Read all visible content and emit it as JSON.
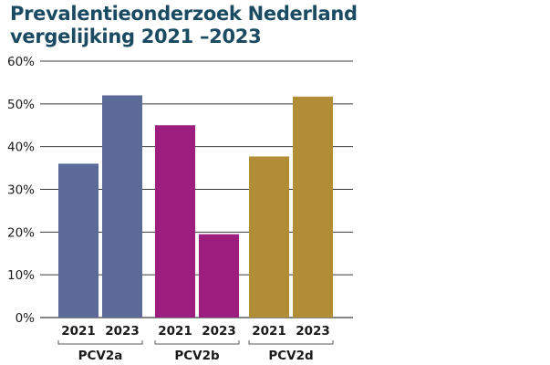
{
  "chart_data": {
    "type": "bar",
    "title_lines": [
      "Prevalentieonderzoek Nederland",
      "vergelijking 2021 –2023"
    ],
    "ylim": [
      0,
      60
    ],
    "yticks": [
      0,
      10,
      20,
      30,
      40,
      50,
      60
    ],
    "ytick_labels": [
      "0%",
      "10%",
      "20%",
      "30%",
      "40%",
      "50%",
      "60%"
    ],
    "grid": true,
    "groups": [
      {
        "name": "PCV2a",
        "color": "#5b6a96",
        "bars": [
          {
            "label": "2021",
            "value": 36
          },
          {
            "label": "2023",
            "value": 52
          }
        ]
      },
      {
        "name": "PCV2b",
        "color": "#9c1f80",
        "bars": [
          {
            "label": "2021",
            "value": 45
          },
          {
            "label": "2023",
            "value": 19.5
          }
        ]
      },
      {
        "name": "PCV2d",
        "color": "#b18d36",
        "bars": [
          {
            "label": "2021",
            "value": 37.7
          },
          {
            "label": "2023",
            "value": 51.7
          }
        ]
      }
    ]
  }
}
